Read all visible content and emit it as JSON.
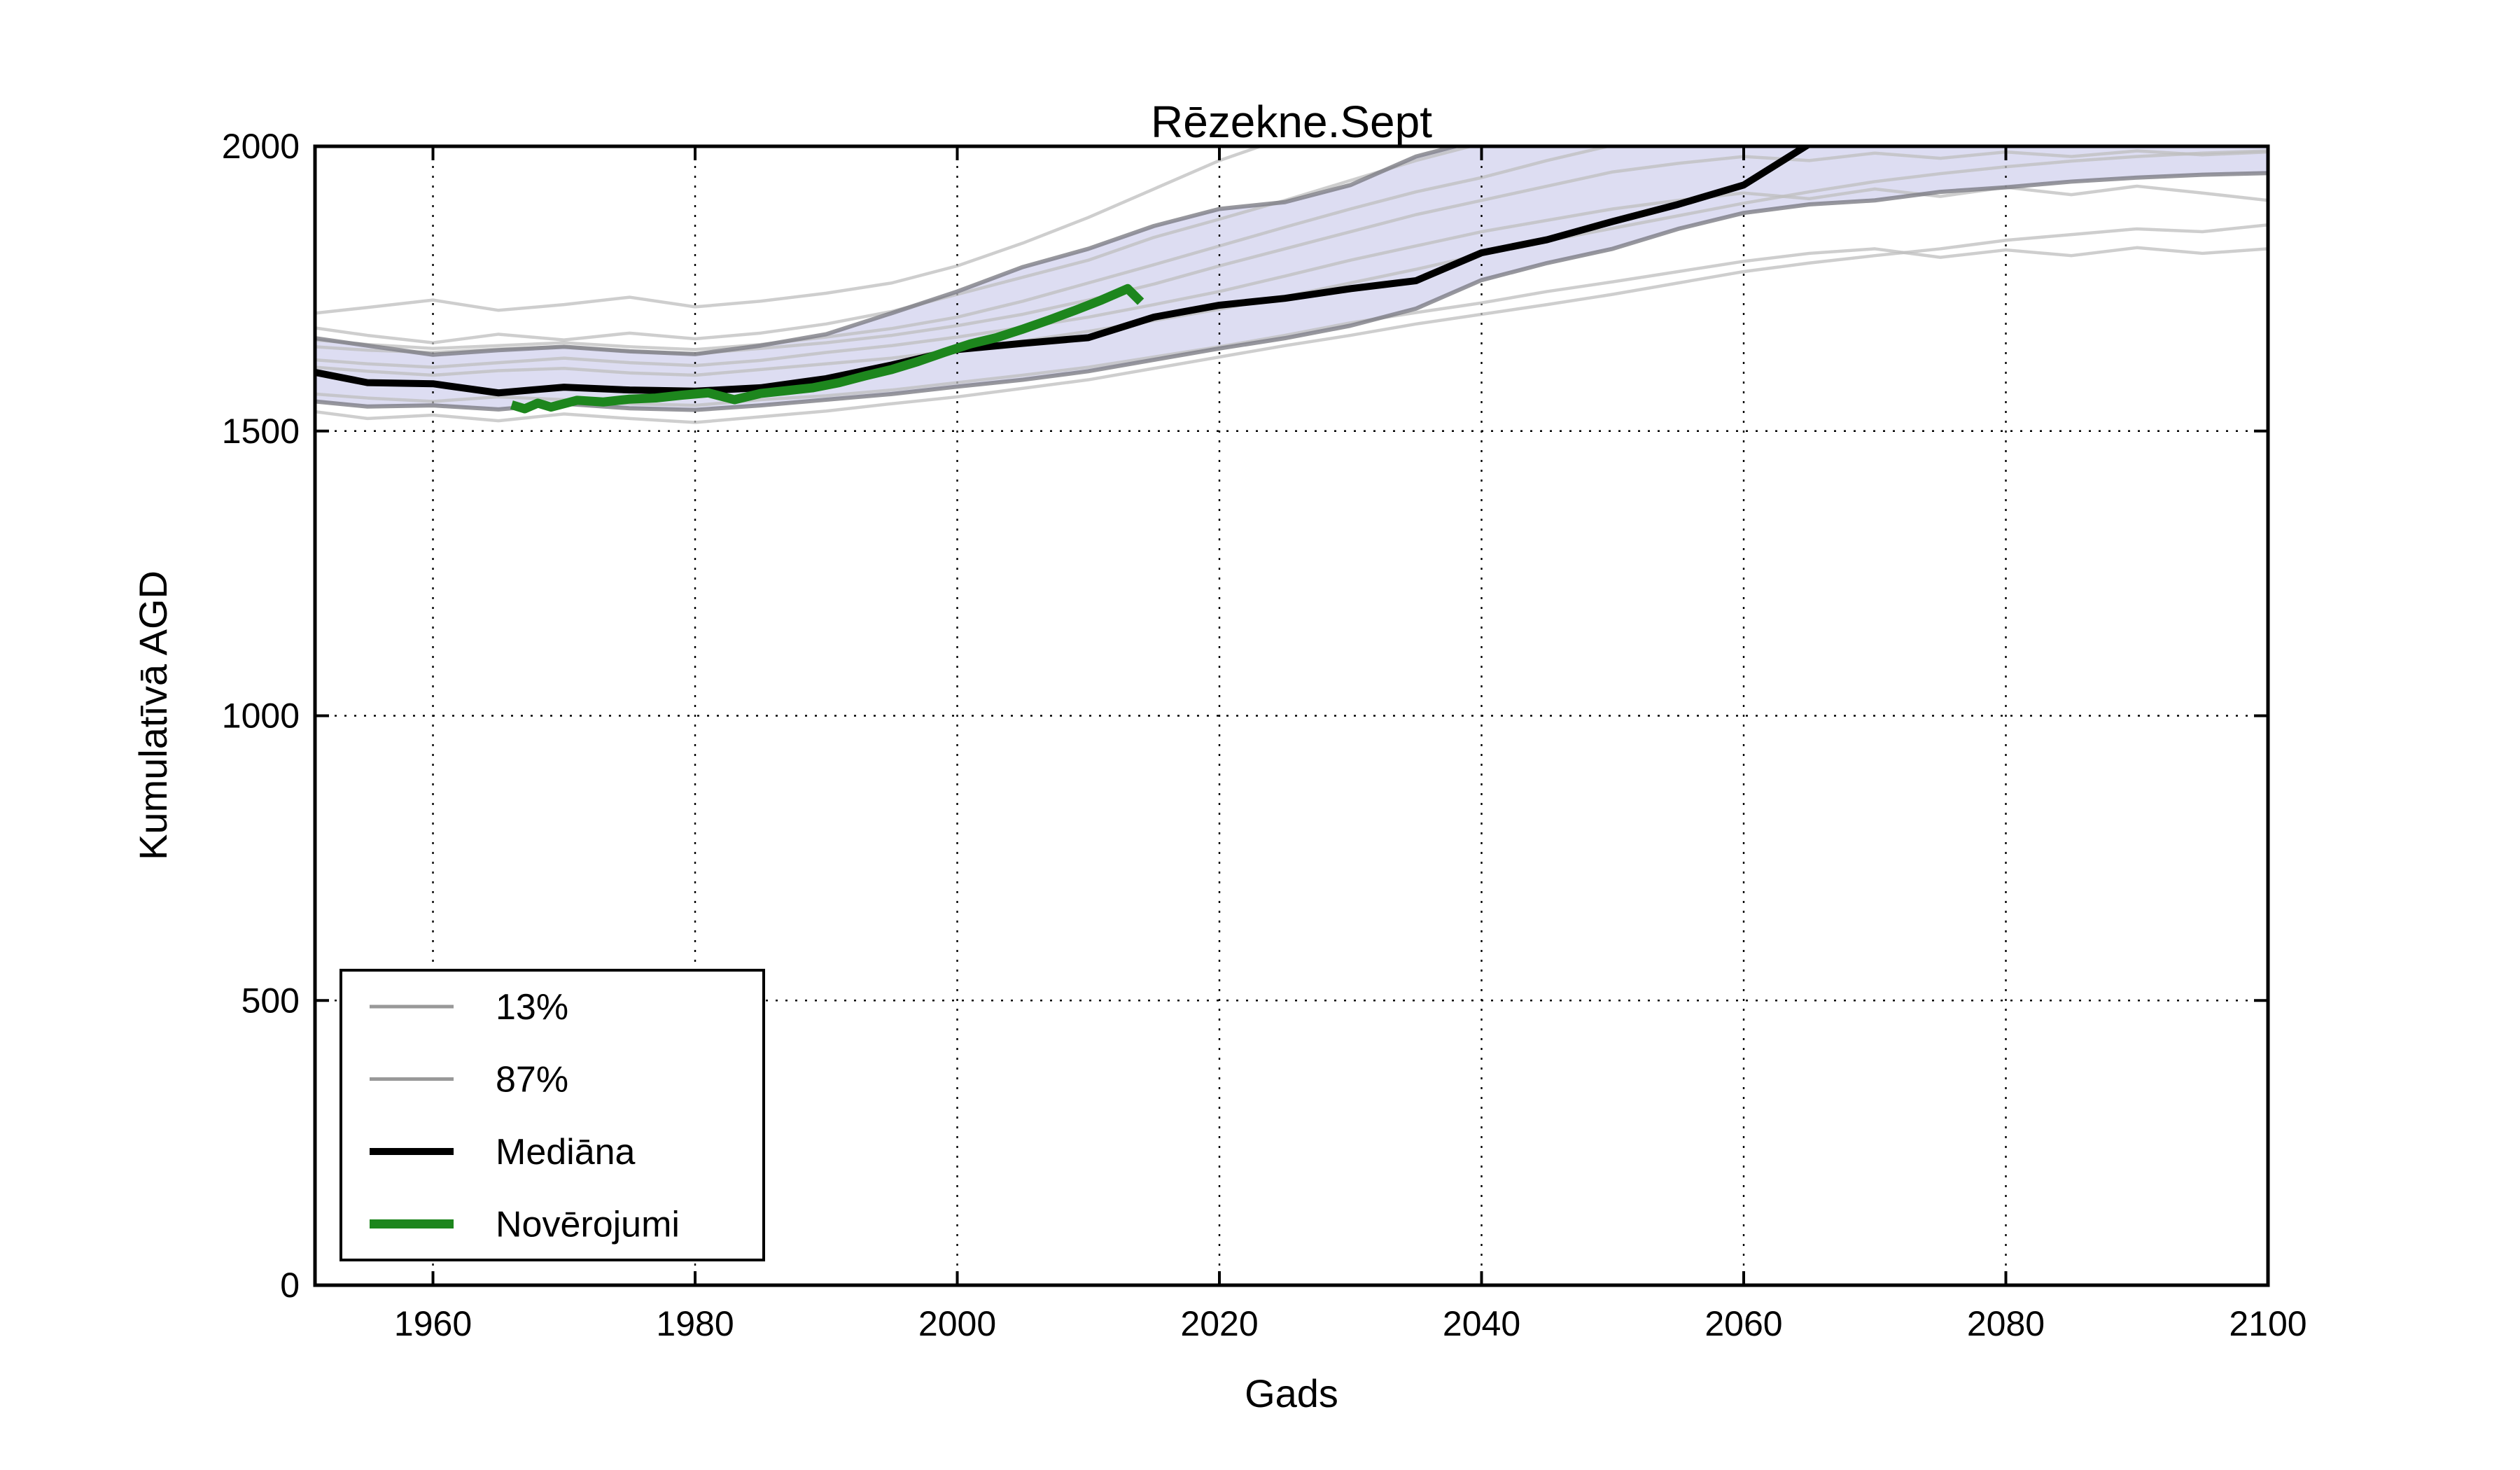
{
  "chart_data": {
    "type": "line",
    "title": "Rēzekne.Sept",
    "xlabel": "Gads",
    "ylabel": "Kumulatīvā AGD",
    "xlim": [
      1951,
      2100
    ],
    "ylim": [
      0,
      2000
    ],
    "xticks": [
      1960,
      1980,
      2000,
      2020,
      2040,
      2060,
      2080,
      2100
    ],
    "yticks": [
      0,
      500,
      1000,
      1500,
      2000
    ],
    "grid": "dotted-black-both-axes",
    "legend_position": "lower-left",
    "clip_note": "series values above 2000 are clipped by the top axis in the rendered figure",
    "band": {
      "between": [
        "13%",
        "87%"
      ],
      "fill": "rgba(174,174,224,0.42)"
    },
    "years": [
      1951,
      1955,
      1960,
      1965,
      1970,
      1975,
      1980,
      1985,
      1990,
      1995,
      2000,
      2005,
      2010,
      2015,
      2020,
      2025,
      2030,
      2035,
      2040,
      2045,
      2050,
      2055,
      2060,
      2065,
      2070,
      2075,
      2080,
      2085,
      2090,
      2095,
      2100
    ],
    "series": [
      {
        "name": "13%",
        "role": "percentile-lower-band-edge",
        "color": "#7d7d85",
        "width": 6,
        "opacity": 0.8,
        "values": [
          1552,
          1543,
          1545,
          1538,
          1548,
          1540,
          1537,
          1545,
          1555,
          1565,
          1578,
          1590,
          1605,
          1625,
          1645,
          1663,
          1685,
          1715,
          1765,
          1795,
          1820,
          1855,
          1883,
          1898,
          1905,
          1920,
          1928,
          1938,
          1945,
          1950,
          1953
        ]
      },
      {
        "name": "87%",
        "role": "percentile-upper-band-edge",
        "color": "#7d7d85",
        "width": 6,
        "opacity": 0.8,
        "values": [
          1663,
          1650,
          1634,
          1642,
          1648,
          1640,
          1635,
          1650,
          1670,
          1707,
          1745,
          1788,
          1820,
          1860,
          1890,
          1902,
          1932,
          1982,
          2012,
          2036,
          2055,
          2068,
          2080,
          2090,
          2096,
          2100,
          2104,
          2108,
          2110,
          2112,
          2114
        ]
      },
      {
        "name": "Mediāna",
        "role": "median",
        "color": "#000000",
        "width": 10,
        "opacity": 1,
        "values": [
          1603,
          1585,
          1583,
          1567,
          1577,
          1572,
          1570,
          1576,
          1592,
          1616,
          1643,
          1654,
          1664,
          1700,
          1721,
          1733,
          1750,
          1764,
          1813,
          1836,
          1868,
          1898,
          1932,
          2004,
          2040,
          2058,
          2072,
          2085,
          2095,
          2104,
          2110
        ]
      }
    ],
    "observations": {
      "name": "Novērojumi",
      "role": "observed",
      "color": "#1d861d",
      "width": 13,
      "opacity": 1,
      "years": [
        1966,
        1967,
        1968,
        1969,
        1971,
        1973,
        1975,
        1977,
        1979,
        1981,
        1983,
        1985,
        1987,
        1989,
        1991,
        1993,
        1995,
        1997,
        1999,
        2001,
        2003,
        2005,
        2007,
        2009,
        2011,
        2013,
        2014
      ],
      "values": [
        1546,
        1539,
        1549,
        1542,
        1554,
        1551,
        1556,
        1558,
        1563,
        1567,
        1555,
        1566,
        1571,
        1576,
        1585,
        1597,
        1608,
        1622,
        1638,
        1653,
        1664,
        1679,
        1695,
        1712,
        1730,
        1750,
        1727
      ]
    },
    "ensemble": {
      "role": "individual-model-runs",
      "color": "#bdbdbd",
      "width": 4.5,
      "opacity": 0.75,
      "runs": [
        [
          1707,
          1717,
          1730,
          1712,
          1722,
          1735,
          1718,
          1728,
          1742,
          1760,
          1790,
          1830,
          1875,
          1925,
          1975,
          2015,
          2040,
          2055,
          2070,
          2080,
          2090,
          2095,
          2100,
          2105,
          2108,
          2110,
          2112,
          2114,
          2116,
          2118,
          2120
        ],
        [
          1681,
          1668,
          1655,
          1670,
          1660,
          1672,
          1662,
          1672,
          1688,
          1710,
          1740,
          1770,
          1800,
          1840,
          1872,
          1905,
          1940,
          1975,
          2005,
          2025,
          2040,
          2052,
          2062,
          2070,
          2076,
          2082,
          2086,
          2090,
          2094,
          2096,
          2098
        ],
        [
          1660,
          1652,
          1645,
          1650,
          1655,
          1648,
          1643,
          1652,
          1665,
          1680,
          1700,
          1728,
          1760,
          1792,
          1825,
          1858,
          1890,
          1920,
          1945,
          1975,
          2002,
          2018,
          2032,
          2042,
          2050,
          2056,
          2062,
          2066,
          2070,
          2074,
          2076
        ],
        [
          1648,
          1642,
          1638,
          1644,
          1648,
          1640,
          1636,
          1645,
          1655,
          1668,
          1685,
          1705,
          1730,
          1758,
          1790,
          1820,
          1850,
          1880,
          1905,
          1930,
          1955,
          1970,
          1982,
          1975,
          1988,
          1979,
          1990,
          1982,
          1992,
          1985,
          1990
        ],
        [
          1625,
          1618,
          1612,
          1620,
          1628,
          1620,
          1615,
          1624,
          1638,
          1650,
          1665,
          1682,
          1700,
          1722,
          1745,
          1772,
          1800,
          1825,
          1850,
          1870,
          1890,
          1905,
          1918,
          1908,
          1925,
          1912,
          1928,
          1915,
          1930,
          1918,
          1905
        ],
        [
          1565,
          1558,
          1552,
          1560,
          1555,
          1548,
          1545,
          1555,
          1562,
          1572,
          1585,
          1598,
          1612,
          1630,
          1648,
          1668,
          1690,
          1708,
          1725,
          1745,
          1762,
          1780,
          1798,
          1812,
          1820,
          1805,
          1818,
          1808,
          1822,
          1812,
          1820
        ],
        [
          1534,
          1522,
          1528,
          1518,
          1530,
          1522,
          1515,
          1525,
          1535,
          1548,
          1560,
          1575,
          1590,
          1610,
          1630,
          1650,
          1668,
          1688,
          1705,
          1722,
          1740,
          1760,
          1780,
          1795,
          1808,
          1820,
          1835,
          1845,
          1855,
          1850,
          1862
        ],
        [
          1612,
          1605,
          1598,
          1606,
          1610,
          1602,
          1598,
          1608,
          1618,
          1628,
          1642,
          1658,
          1675,
          1694,
          1714,
          1736,
          1760,
          1784,
          1810,
          1834,
          1856,
          1878,
          1900,
          1920,
          1938,
          1952,
          1964,
          1974,
          1982,
          1988,
          1992
        ]
      ]
    },
    "legend": {
      "items": [
        {
          "label": "13%",
          "color": "#999999",
          "width": 5
        },
        {
          "label": "87%",
          "color": "#999999",
          "width": 5
        },
        {
          "label": "Mediāna",
          "color": "#000000",
          "width": 10
        },
        {
          "label": "Novērojumi",
          "color": "#1d861d",
          "width": 13
        }
      ]
    }
  }
}
